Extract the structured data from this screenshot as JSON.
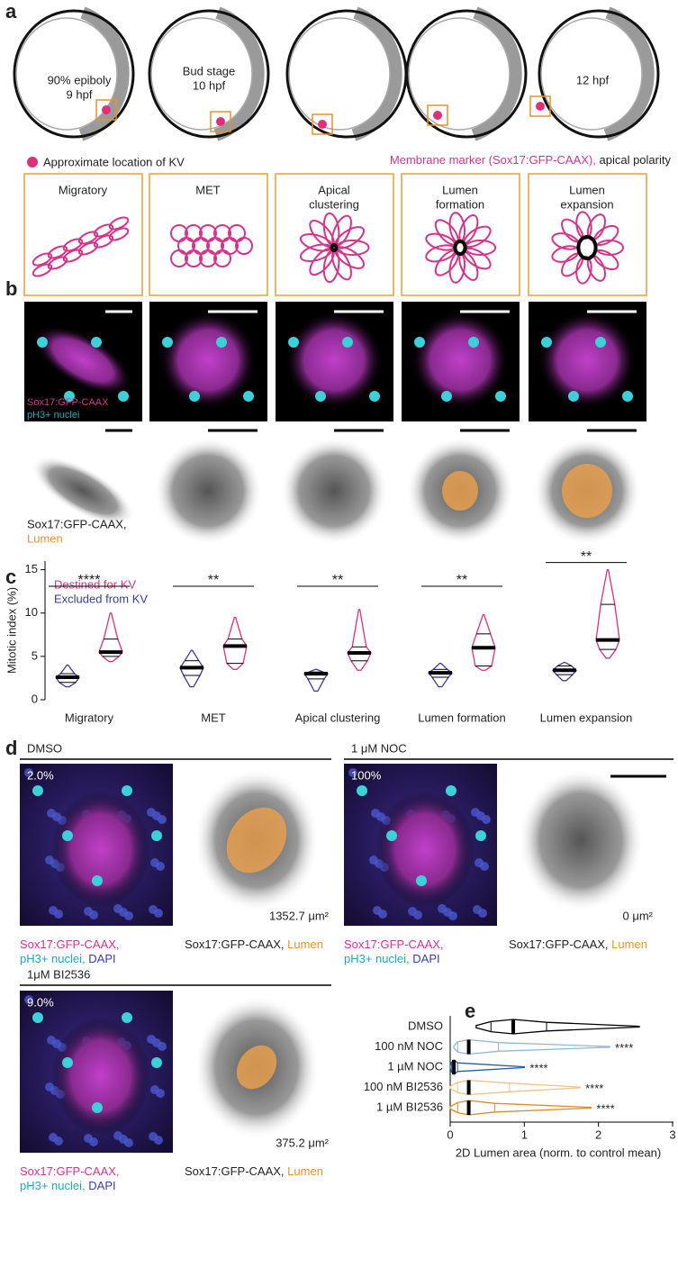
{
  "panel_labels": [
    "a",
    "b",
    "c",
    "d",
    "e"
  ],
  "panel_a": {
    "embryo_texts": [
      "90% epiboly",
      "9 hpf",
      "Bud stage",
      "10 hpf",
      "12 hpf"
    ],
    "legend_kv": "Approximate location of KV",
    "legend_marker": "Membrane marker (Sox17:GFP-CAAX),",
    "legend_polarity": "apical polarity",
    "stages": [
      [
        "Migratory"
      ],
      [
        "MET"
      ],
      [
        "Apical",
        "clustering"
      ],
      [
        "Lumen",
        "formation"
      ],
      [
        "Lumen",
        "expansion"
      ]
    ]
  },
  "panel_b": {
    "marker": "Sox17:GFP-CAAX",
    "nuclei": "pH3+ nuclei",
    "marker_comma": "Sox17:GFP-CAAX,",
    "lumen": "Lumen"
  },
  "chart_data": [
    {
      "type": "violin",
      "orientation": "vertical",
      "ylabel": "Mitotic index (%)",
      "categories": [
        "Migratory",
        "MET",
        "Apical clustering",
        "Lumen formation",
        "Lumen expansion"
      ],
      "ylim": [
        0,
        16
      ],
      "yticks": [
        0,
        5,
        10,
        15
      ],
      "significance": [
        "****",
        "**",
        "**",
        "**",
        "**"
      ],
      "series": [
        {
          "name": "Destined for KV",
          "color": "#e0307a",
          "stats": [
            {
              "min": 4.4,
              "q1": 5.0,
              "median": 5.5,
              "q3": 7.0,
              "max": 10.0
            },
            {
              "min": 3.5,
              "q1": 4.2,
              "median": 6.2,
              "q3": 7.0,
              "max": 9.5
            },
            {
              "min": 3.4,
              "q1": 4.5,
              "median": 5.4,
              "q3": 6.1,
              "max": 10.4
            },
            {
              "min": 3.4,
              "q1": 3.9,
              "median": 6.0,
              "q3": 7.6,
              "max": 9.8
            },
            {
              "min": 4.8,
              "q1": 5.8,
              "median": 6.9,
              "q3": 11.0,
              "max": 15.0
            }
          ]
        },
        {
          "name": "Excluded from KV",
          "color": "#3b3b9a",
          "stats": [
            {
              "min": 1.5,
              "q1": 2.0,
              "median": 2.6,
              "q3": 3.0,
              "max": 4.0
            },
            {
              "min": 1.5,
              "q1": 2.8,
              "median": 3.7,
              "q3": 4.5,
              "max": 5.7
            },
            {
              "min": 1.0,
              "q1": 2.4,
              "median": 3.0,
              "q3": 3.2,
              "max": 3.5
            },
            {
              "min": 1.5,
              "q1": 2.6,
              "median": 3.1,
              "q3": 3.5,
              "max": 4.2
            },
            {
              "min": 2.2,
              "q1": 2.9,
              "median": 3.4,
              "q3": 3.9,
              "max": 4.3
            }
          ]
        }
      ]
    },
    {
      "type": "violin",
      "orientation": "horizontal",
      "xlabel": "2D Lumen area (norm. to control mean)",
      "categories": [
        "DMSO",
        "100 nM NOC",
        "1 µM NOC",
        "100 nM BI2536",
        "1 µM BI2536"
      ],
      "colors": [
        "#000000",
        "#8fb8d8",
        "#2060a0",
        "#f5c08a",
        "#e08a20"
      ],
      "xlim": [
        0,
        3
      ],
      "xticks": [
        0,
        1,
        2,
        3
      ],
      "significance": [
        null,
        "****",
        "****",
        "****",
        "****"
      ],
      "stats": [
        {
          "min": 0.35,
          "q1": 0.55,
          "median": 0.85,
          "q3": 1.3,
          "max": 2.55
        },
        {
          "min": 0.05,
          "q1": 0.1,
          "median": 0.25,
          "q3": 0.65,
          "max": 2.15
        },
        {
          "min": 0.0,
          "q1": 0.02,
          "median": 0.05,
          "q3": 0.1,
          "max": 1.0
        },
        {
          "min": 0.0,
          "q1": 0.1,
          "median": 0.25,
          "q3": 0.8,
          "max": 1.75
        },
        {
          "min": 0.0,
          "q1": 0.1,
          "median": 0.25,
          "q3": 0.6,
          "max": 1.9
        }
      ]
    }
  ],
  "panel_d": {
    "dmso": {
      "title": "DMSO",
      "percent": "2.0%",
      "area": "1352.7 μm²"
    },
    "noc": {
      "title": "1 μM NOC",
      "percent": "100%",
      "area": "0 μm²"
    },
    "bi": {
      "title": "1μM BI2536",
      "percent": "9.0%",
      "area": "375.2 μm²"
    },
    "fluor_marker": "Sox17:GFP-CAAX,",
    "fluor_nuclei": "pH3+ nuclei,",
    "fluor_dapi": "DAPI",
    "gray_marker": "Sox17:GFP-CAAX,",
    "gray_lumen": "Lumen"
  }
}
